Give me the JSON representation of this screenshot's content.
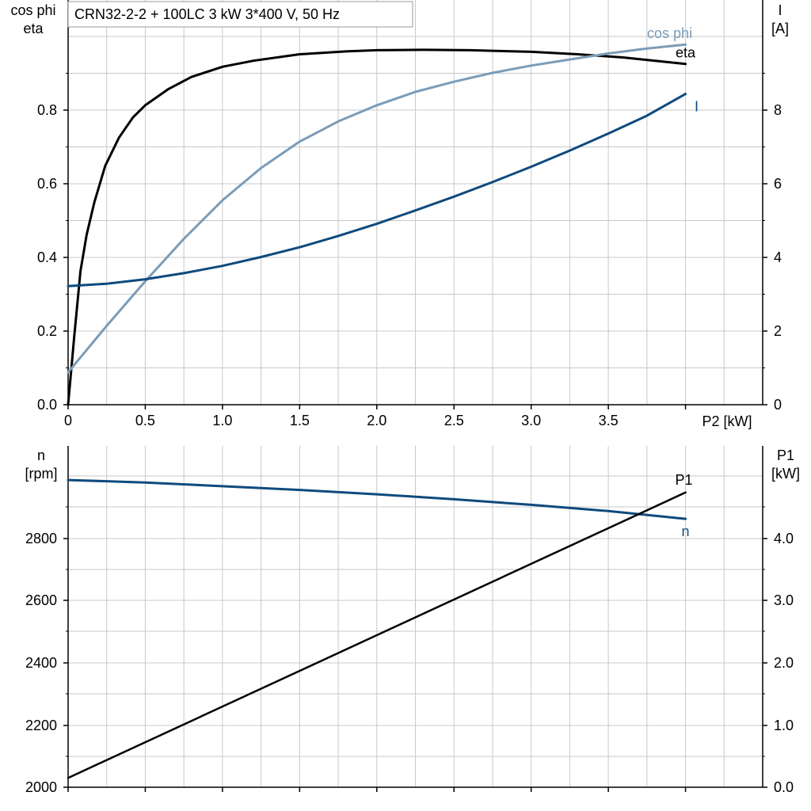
{
  "title": "CRN32-2-2 + 100LC   3 kW   3*400 V, 50 Hz",
  "colors": {
    "eta": "#000000",
    "cos_phi": "#7a9cb8",
    "current": "#0f4a7d",
    "speed": "#0f4a7d",
    "p1": "#000000",
    "grid": "#c8c8c8",
    "axis": "#000000"
  },
  "chart_data": [
    {
      "type": "line",
      "x_label": "P2 [kW]",
      "y_left_label": [
        "cos phi",
        "eta"
      ],
      "y_right_label": [
        "I",
        "[A]"
      ],
      "x_ticks": [
        "0",
        "0.5",
        "1.0",
        "1.5",
        "2.0",
        "2.5",
        "3.0",
        "3.5"
      ],
      "y_left_ticks": [
        "0.0",
        "0.2",
        "0.4",
        "0.6",
        "0.8"
      ],
      "y_right_ticks": [
        "0",
        "2",
        "4",
        "6",
        "8"
      ],
      "xlim": [
        0,
        4.5
      ],
      "ylim_left": [
        0,
        1.0
      ],
      "ylim_right": [
        0,
        10
      ],
      "grid": true,
      "series": [
        {
          "name": "eta",
          "axis": "left",
          "x": [
            0,
            0.04,
            0.08,
            0.12,
            0.17,
            0.24,
            0.33,
            0.42,
            0.5,
            0.65,
            0.8,
            1.0,
            1.2,
            1.5,
            1.8,
            2.0,
            2.3,
            2.6,
            3.0,
            3.3,
            3.6,
            4.0
          ],
          "y": [
            0.0,
            0.17,
            0.33,
            0.42,
            0.5,
            0.59,
            0.66,
            0.71,
            0.74,
            0.78,
            0.81,
            0.835,
            0.85,
            0.866,
            0.873,
            0.876,
            0.877,
            0.876,
            0.872,
            0.866,
            0.858,
            0.842
          ]
        },
        {
          "name": "cos phi",
          "axis": "left",
          "x": [
            0,
            0.25,
            0.5,
            0.75,
            1.0,
            1.25,
            1.5,
            1.75,
            2.0,
            2.25,
            2.5,
            2.75,
            3.0,
            3.25,
            3.5,
            3.75,
            4.0
          ],
          "y": [
            0.08,
            0.195,
            0.305,
            0.41,
            0.505,
            0.585,
            0.65,
            0.7,
            0.74,
            0.773,
            0.798,
            0.82,
            0.838,
            0.853,
            0.868,
            0.88,
            0.89
          ]
        },
        {
          "name": "I",
          "axis": "right",
          "x": [
            0,
            0.25,
            0.5,
            0.75,
            1.0,
            1.25,
            1.5,
            1.75,
            2.0,
            2.25,
            2.5,
            2.75,
            3.0,
            3.25,
            3.5,
            3.75,
            4.0
          ],
          "y": [
            2.93,
            2.99,
            3.1,
            3.25,
            3.43,
            3.65,
            3.89,
            4.17,
            4.47,
            4.8,
            5.14,
            5.5,
            5.88,
            6.28,
            6.7,
            7.14,
            7.68
          ]
        }
      ]
    },
    {
      "type": "line",
      "x_label": "",
      "y_left_label": [
        "n",
        "[rpm]"
      ],
      "y_right_label": [
        "P1",
        "[kW]"
      ],
      "y_left_ticks": [
        "2000",
        "2200",
        "2400",
        "2600",
        "2800"
      ],
      "y_right_ticks": [
        "0.0",
        "1.0",
        "2.0",
        "3.0",
        "4.0"
      ],
      "xlim": [
        0,
        4.5
      ],
      "ylim_left": [
        2000,
        3100
      ],
      "ylim_right": [
        0,
        5.5
      ],
      "grid": true,
      "series": [
        {
          "name": "n",
          "axis": "left",
          "x": [
            0,
            0.5,
            1.0,
            1.5,
            2.0,
            2.5,
            3.0,
            3.5,
            4.0
          ],
          "y": [
            2990,
            2982,
            2970,
            2958,
            2944,
            2928,
            2910,
            2890,
            2865
          ]
        },
        {
          "name": "P1",
          "axis": "right",
          "x": [
            0,
            4.0
          ],
          "y": [
            0.15,
            4.75
          ]
        }
      ]
    }
  ]
}
